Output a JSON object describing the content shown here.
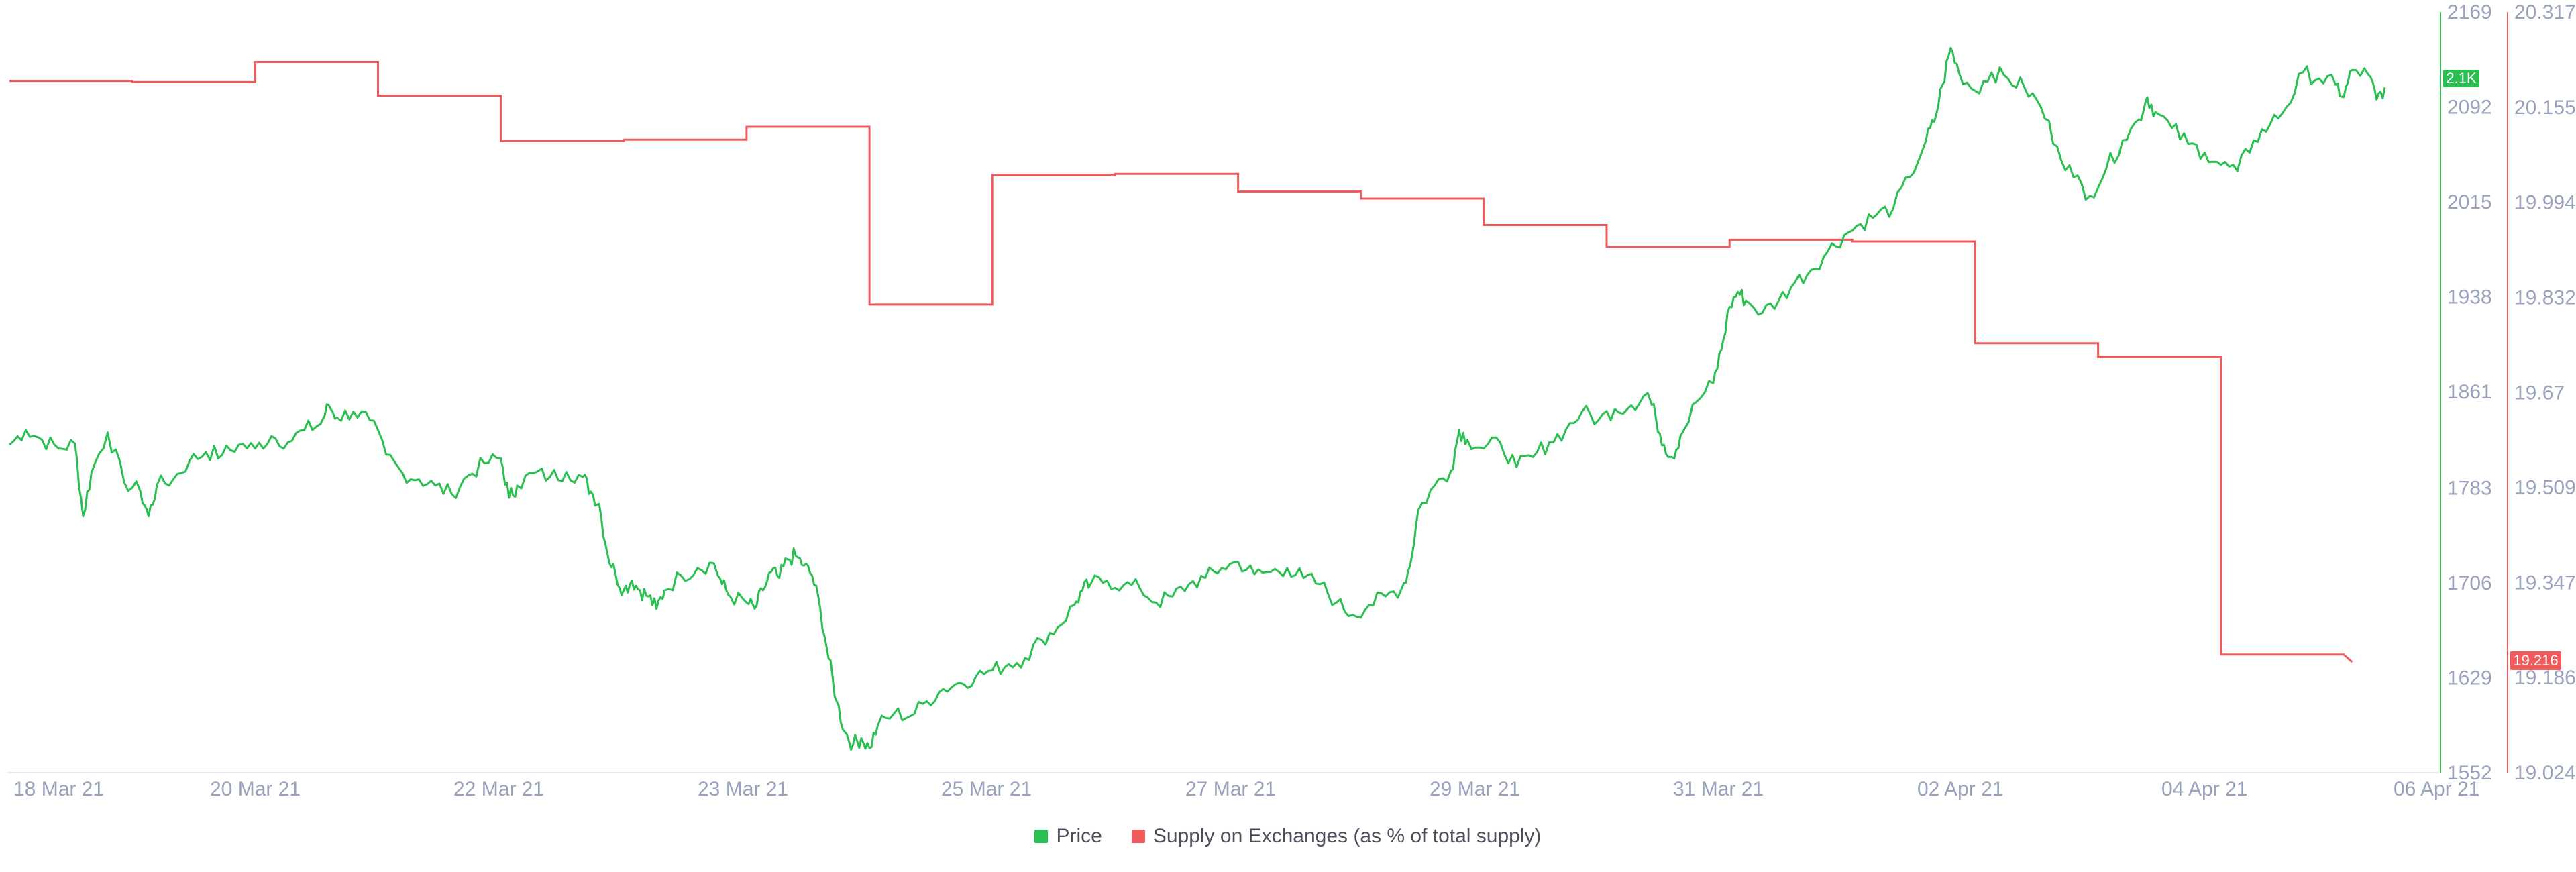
{
  "chart_data": {
    "type": "line",
    "x_tick_labels": [
      "18 Mar 21",
      "20 Mar 21",
      "22 Mar 21",
      "23 Mar 21",
      "25 Mar 21",
      "27 Mar 21",
      "29 Mar 21",
      "31 Mar 21",
      "02 Apr 21",
      "04 Apr 21",
      "06 Apr 21"
    ],
    "y_left": {
      "ticks": [
        "2169",
        "2092",
        "2015",
        "1938",
        "1861",
        "1783",
        "1706",
        "1629",
        "1552"
      ],
      "range": [
        1552,
        2169
      ],
      "color": "#2bbf52"
    },
    "y_right": {
      "ticks": [
        "20.317",
        "20.155",
        "19.994",
        "19.832",
        "19.67",
        "19.509",
        "19.347",
        "19.186",
        "19.024"
      ],
      "range": [
        19.024,
        20.317
      ],
      "color": "#f05a5a"
    },
    "price_badge": "2.1K",
    "supply_badge": "19.216",
    "grid": false,
    "legend_position": "bottom-center",
    "series": [
      {
        "name": "Price",
        "color": "#2bbf52",
        "points": [
          [
            0,
            1818
          ],
          [
            0.1,
            1830
          ],
          [
            0.2,
            1822
          ],
          [
            0.3,
            1815
          ],
          [
            0.4,
            1819
          ],
          [
            0.45,
            1760
          ],
          [
            0.5,
            1795
          ],
          [
            0.6,
            1828
          ],
          [
            0.7,
            1788
          ],
          [
            0.8,
            1780
          ],
          [
            0.85,
            1760
          ],
          [
            0.9,
            1785
          ],
          [
            1.0,
            1790
          ],
          [
            1.1,
            1805
          ],
          [
            1.2,
            1812
          ],
          [
            1.3,
            1810
          ],
          [
            1.4,
            1818
          ],
          [
            1.5,
            1815
          ],
          [
            1.6,
            1825
          ],
          [
            1.7,
            1820
          ],
          [
            1.8,
            1830
          ],
          [
            1.9,
            1835
          ],
          [
            1.95,
            1850
          ],
          [
            2.0,
            1840
          ],
          [
            2.1,
            1845
          ],
          [
            2.2,
            1838
          ],
          [
            2.3,
            1810
          ],
          [
            2.4,
            1795
          ],
          [
            2.5,
            1790
          ],
          [
            2.6,
            1785
          ],
          [
            2.7,
            1778
          ],
          [
            2.8,
            1793
          ],
          [
            2.9,
            1803
          ],
          [
            3.0,
            1807
          ],
          [
            3.05,
            1775
          ],
          [
            3.1,
            1785
          ],
          [
            3.2,
            1795
          ],
          [
            3.3,
            1792
          ],
          [
            3.4,
            1796
          ],
          [
            3.5,
            1792
          ],
          [
            3.55,
            1780
          ],
          [
            3.6,
            1770
          ],
          [
            3.65,
            1730
          ],
          [
            3.7,
            1713
          ],
          [
            3.75,
            1700
          ],
          [
            3.8,
            1708
          ],
          [
            3.85,
            1700
          ],
          [
            3.9,
            1695
          ],
          [
            3.95,
            1685
          ],
          [
            4.0,
            1700
          ],
          [
            4.1,
            1712
          ],
          [
            4.2,
            1718
          ],
          [
            4.3,
            1722
          ],
          [
            4.35,
            1705
          ],
          [
            4.4,
            1695
          ],
          [
            4.5,
            1690
          ],
          [
            4.55,
            1685
          ],
          [
            4.6,
            1700
          ],
          [
            4.65,
            1715
          ],
          [
            4.7,
            1710
          ],
          [
            4.75,
            1725
          ],
          [
            4.8,
            1728
          ],
          [
            4.85,
            1720
          ],
          [
            4.9,
            1712
          ],
          [
            4.95,
            1685
          ],
          [
            5.0,
            1645
          ],
          [
            5.05,
            1610
          ],
          [
            5.1,
            1585
          ],
          [
            5.15,
            1575
          ],
          [
            5.2,
            1580
          ],
          [
            5.25,
            1572
          ],
          [
            5.3,
            1590
          ],
          [
            5.4,
            1600
          ],
          [
            5.5,
            1598
          ],
          [
            5.6,
            1610
          ],
          [
            5.7,
            1620
          ],
          [
            5.8,
            1625
          ],
          [
            5.9,
            1630
          ],
          [
            6.0,
            1635
          ],
          [
            6.1,
            1640
          ],
          [
            6.2,
            1645
          ],
          [
            6.3,
            1660
          ],
          [
            6.4,
            1670
          ],
          [
            6.5,
            1688
          ],
          [
            6.55,
            1700
          ],
          [
            6.6,
            1705
          ],
          [
            6.7,
            1708
          ],
          [
            6.8,
            1704
          ],
          [
            6.9,
            1702
          ],
          [
            7.0,
            1690
          ],
          [
            7.1,
            1695
          ],
          [
            7.2,
            1705
          ],
          [
            7.3,
            1710
          ],
          [
            7.4,
            1718
          ],
          [
            7.5,
            1723
          ],
          [
            7.6,
            1713
          ],
          [
            7.7,
            1715
          ],
          [
            7.8,
            1718
          ],
          [
            7.9,
            1710
          ],
          [
            8.0,
            1705
          ],
          [
            8.1,
            1690
          ],
          [
            8.2,
            1680
          ],
          [
            8.3,
            1688
          ],
          [
            8.4,
            1695
          ],
          [
            8.5,
            1702
          ],
          [
            8.55,
            1720
          ],
          [
            8.6,
            1765
          ],
          [
            8.7,
            1785
          ],
          [
            8.8,
            1797
          ],
          [
            8.85,
            1830
          ],
          [
            8.9,
            1822
          ],
          [
            9.0,
            1815
          ],
          [
            9.1,
            1820
          ],
          [
            9.2,
            1800
          ],
          [
            9.3,
            1808
          ],
          [
            9.4,
            1820
          ],
          [
            9.5,
            1830
          ],
          [
            9.6,
            1845
          ],
          [
            9.7,
            1838
          ],
          [
            9.8,
            1847
          ],
          [
            9.9,
            1850
          ],
          [
            10.0,
            1860
          ],
          [
            10.05,
            1840
          ],
          [
            10.1,
            1818
          ],
          [
            10.15,
            1808
          ],
          [
            10.2,
            1825
          ],
          [
            10.3,
            1853
          ],
          [
            10.4,
            1868
          ],
          [
            10.45,
            1895
          ],
          [
            10.5,
            1930
          ],
          [
            10.55,
            1942
          ],
          [
            10.6,
            1935
          ],
          [
            10.7,
            1925
          ],
          [
            10.8,
            1935
          ],
          [
            10.9,
            1950
          ],
          [
            11.0,
            1960
          ],
          [
            11.1,
            1975
          ],
          [
            11.2,
            1988
          ],
          [
            11.3,
            1997
          ],
          [
            11.4,
            2005
          ],
          [
            11.5,
            2010
          ],
          [
            11.6,
            2035
          ],
          [
            11.7,
            2065
          ],
          [
            11.75,
            2080
          ],
          [
            11.8,
            2110
          ],
          [
            11.85,
            2140
          ],
          [
            11.9,
            2120
          ],
          [
            12.0,
            2105
          ],
          [
            12.1,
            2120
          ],
          [
            12.2,
            2115
          ],
          [
            12.3,
            2108
          ],
          [
            12.4,
            2092
          ],
          [
            12.5,
            2060
          ],
          [
            12.6,
            2035
          ],
          [
            12.7,
            2020
          ],
          [
            12.8,
            2042
          ],
          [
            12.9,
            2065
          ],
          [
            13.0,
            2082
          ],
          [
            13.05,
            2100
          ],
          [
            13.1,
            2088
          ],
          [
            13.2,
            2075
          ],
          [
            13.3,
            2062
          ],
          [
            13.4,
            2055
          ],
          [
            13.5,
            2045
          ],
          [
            13.6,
            2040
          ],
          [
            13.7,
            2065
          ],
          [
            13.8,
            2078
          ],
          [
            13.9,
            2092
          ],
          [
            14.0,
            2120
          ],
          [
            14.1,
            2115
          ],
          [
            14.2,
            2110
          ],
          [
            14.25,
            2100
          ],
          [
            14.3,
            2122
          ],
          [
            14.4,
            2118
          ],
          [
            14.45,
            2098
          ],
          [
            14.5,
            2108
          ]
        ]
      },
      {
        "name": "Supply on Exchanges (as % of total supply)",
        "color": "#f05a5a",
        "points": [
          [
            0,
            20.2
          ],
          [
            0.75,
            20.2
          ],
          [
            0.75,
            20.198
          ],
          [
            1.5,
            20.198
          ],
          [
            1.5,
            20.232
          ],
          [
            2.25,
            20.232
          ],
          [
            2.25,
            20.175
          ],
          [
            3.0,
            20.175
          ],
          [
            3.0,
            20.098
          ],
          [
            3.75,
            20.098
          ],
          [
            3.75,
            20.1
          ],
          [
            4.5,
            20.1
          ],
          [
            4.5,
            20.122
          ],
          [
            5.25,
            20.122
          ],
          [
            5.25,
            19.82
          ],
          [
            6.0,
            19.82
          ],
          [
            6.0,
            20.04
          ],
          [
            6.75,
            20.04
          ],
          [
            6.75,
            20.042
          ],
          [
            7.5,
            20.042
          ],
          [
            7.5,
            20.012
          ],
          [
            8.25,
            20.012
          ],
          [
            8.25,
            20.0
          ],
          [
            9.0,
            20.0
          ],
          [
            9.0,
            19.955
          ],
          [
            9.75,
            19.955
          ],
          [
            9.75,
            19.918
          ],
          [
            10.5,
            19.918
          ],
          [
            10.5,
            19.93
          ],
          [
            11.25,
            19.93
          ],
          [
            11.25,
            19.927
          ],
          [
            12.0,
            19.927
          ],
          [
            12.0,
            19.754
          ],
          [
            12.75,
            19.754
          ],
          [
            12.75,
            19.731
          ],
          [
            13.5,
            19.731
          ],
          [
            13.5,
            19.225
          ],
          [
            14.25,
            19.225
          ],
          [
            14.3,
            19.212
          ]
        ]
      }
    ]
  },
  "legend": [
    {
      "label": "Price",
      "color": "#2bbf52"
    },
    {
      "label": "Supply on Exchanges (as % of total supply)",
      "color": "#f05a5a"
    }
  ]
}
